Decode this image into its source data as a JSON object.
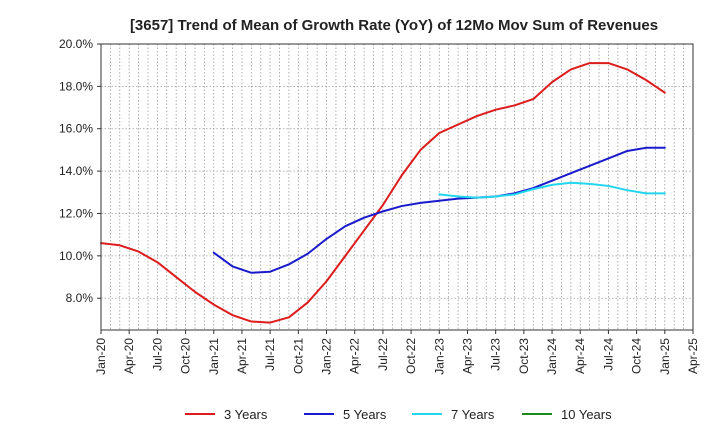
{
  "chart_data": {
    "type": "line",
    "title": "[3657]  Trend of Mean of Growth Rate (YoY) of 12Mo Mov Sum of Revenues",
    "xlabel": "",
    "ylabel": "",
    "x_tick_labels": [
      "Jan-20",
      "Apr-20",
      "Jul-20",
      "Oct-20",
      "Jan-21",
      "Apr-21",
      "Jul-21",
      "Oct-21",
      "Jan-22",
      "Apr-22",
      "Jul-22",
      "Oct-22",
      "Jan-23",
      "Apr-23",
      "Jul-23",
      "Oct-23",
      "Jan-24",
      "Apr-24",
      "Jul-24",
      "Oct-24",
      "Jan-25",
      "Apr-25"
    ],
    "y_tick_labels": [
      "8.0%",
      "10.0%",
      "12.0%",
      "14.0%",
      "16.0%",
      "18.0%",
      "20.0%"
    ],
    "y_ticks": [
      8,
      10,
      12,
      14,
      16,
      18,
      20
    ],
    "ylim": [
      6.5,
      20
    ],
    "x_start_month": 0,
    "x_end_month": 63,
    "grid": "dotted",
    "legend_position": "bottom",
    "series": [
      {
        "name": "3 Years",
        "color": "#dd1c1c",
        "points": [
          [
            0,
            10.6
          ],
          [
            2,
            10.5
          ],
          [
            4,
            10.2
          ],
          [
            6,
            9.7
          ],
          [
            8,
            9.0
          ],
          [
            10,
            8.3
          ],
          [
            12,
            7.7
          ],
          [
            14,
            7.2
          ],
          [
            16,
            6.9
          ],
          [
            18,
            6.85
          ],
          [
            20,
            7.1
          ],
          [
            22,
            7.8
          ],
          [
            24,
            8.8
          ],
          [
            26,
            10.0
          ],
          [
            28,
            11.2
          ],
          [
            30,
            12.4
          ],
          [
            32,
            13.8
          ],
          [
            34,
            15.0
          ],
          [
            36,
            15.8
          ],
          [
            38,
            16.2
          ],
          [
            40,
            16.6
          ],
          [
            42,
            16.9
          ],
          [
            44,
            17.1
          ],
          [
            46,
            17.4
          ],
          [
            48,
            18.2
          ],
          [
            50,
            18.8
          ],
          [
            52,
            19.1
          ],
          [
            54,
            19.1
          ],
          [
            56,
            18.8
          ],
          [
            58,
            18.3
          ],
          [
            60,
            17.7
          ]
        ]
      },
      {
        "name": "5 Years",
        "color": "#1a1acc",
        "points": [
          [
            12,
            10.15
          ],
          [
            14,
            9.5
          ],
          [
            16,
            9.2
          ],
          [
            18,
            9.25
          ],
          [
            20,
            9.6
          ],
          [
            22,
            10.1
          ],
          [
            24,
            10.8
          ],
          [
            26,
            11.4
          ],
          [
            28,
            11.8
          ],
          [
            30,
            12.1
          ],
          [
            32,
            12.35
          ],
          [
            34,
            12.5
          ],
          [
            36,
            12.6
          ],
          [
            38,
            12.7
          ],
          [
            40,
            12.75
          ],
          [
            42,
            12.8
          ],
          [
            44,
            12.95
          ],
          [
            46,
            13.2
          ],
          [
            48,
            13.55
          ],
          [
            50,
            13.9
          ],
          [
            52,
            14.25
          ],
          [
            54,
            14.6
          ],
          [
            56,
            14.95
          ],
          [
            58,
            15.1
          ],
          [
            60,
            15.1
          ]
        ]
      },
      {
        "name": "7 Years",
        "color": "#22d6ee",
        "points": [
          [
            36,
            12.9
          ],
          [
            38,
            12.8
          ],
          [
            40,
            12.75
          ],
          [
            42,
            12.8
          ],
          [
            44,
            12.9
          ],
          [
            46,
            13.15
          ],
          [
            48,
            13.35
          ],
          [
            50,
            13.45
          ],
          [
            52,
            13.4
          ],
          [
            54,
            13.3
          ],
          [
            56,
            13.1
          ],
          [
            58,
            12.95
          ],
          [
            60,
            12.95
          ]
        ]
      },
      {
        "name": "10 Years",
        "color": "#1b8a1b",
        "points": []
      }
    ]
  }
}
